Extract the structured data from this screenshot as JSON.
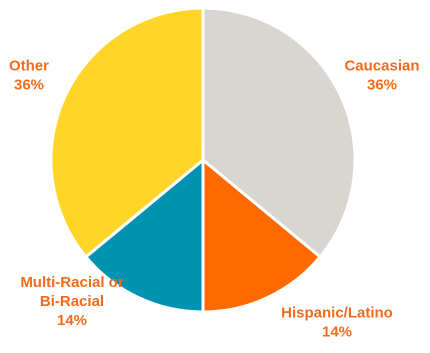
{
  "chart_data": {
    "type": "pie",
    "title": "",
    "legend": "none",
    "slices": [
      {
        "label": "Caucasian",
        "value": 36,
        "value_label": "36%",
        "color": "#D9D5D1"
      },
      {
        "label": "Hispanic/Latino",
        "value": 14,
        "value_label": "14%",
        "color": "#FF6A00"
      },
      {
        "label": "Multi-Racial or Bi-Racial",
        "label_lines": [
          "Multi-Racial or",
          "Bi-Racial"
        ],
        "value": 14,
        "value_label": "14%",
        "color": "#0093B1"
      },
      {
        "label": "Other",
        "value": 36,
        "value_label": "36%",
        "color": "#FFD52A"
      }
    ],
    "label_color": "#F26B1D",
    "slice_border_color": "#ffffff"
  }
}
